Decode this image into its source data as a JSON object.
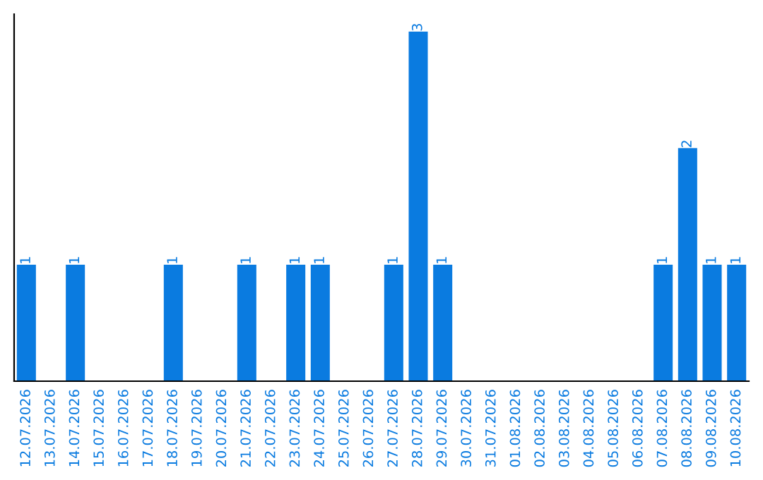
{
  "chart_data": {
    "type": "bar",
    "categories": [
      "12.07.2026",
      "13.07.2026",
      "14.07.2026",
      "15.07.2026",
      "16.07.2026",
      "17.07.2026",
      "18.07.2026",
      "19.07.2026",
      "20.07.2026",
      "21.07.2026",
      "22.07.2026",
      "23.07.2026",
      "24.07.2026",
      "25.07.2026",
      "26.07.2026",
      "27.07.2026",
      "28.07.2026",
      "29.07.2026",
      "30.07.2026",
      "31.07.2026",
      "01.08.2026",
      "02.08.2026",
      "03.08.2026",
      "04.08.2026",
      "05.08.2026",
      "06.08.2026",
      "07.08.2026",
      "08.08.2026",
      "09.08.2026",
      "10.08.2026"
    ],
    "values": [
      1,
      0,
      1,
      0,
      0,
      0,
      1,
      0,
      0,
      1,
      0,
      1,
      1,
      0,
      0,
      1,
      3,
      1,
      0,
      0,
      0,
      0,
      0,
      0,
      0,
      0,
      1,
      2,
      1,
      1
    ],
    "value_labels": [
      "1",
      null,
      "1",
      null,
      null,
      null,
      "1",
      null,
      null,
      "1",
      null,
      "1",
      "1",
      null,
      null,
      "1",
      "3",
      "1",
      null,
      null,
      null,
      null,
      null,
      null,
      null,
      null,
      "1",
      "2",
      "1",
      "1"
    ],
    "color": "#0a7be0",
    "grid": false,
    "legend": false,
    "tick_labels": "x"
  }
}
